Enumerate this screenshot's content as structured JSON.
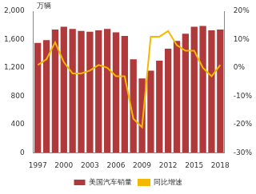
{
  "chart_data": {
    "type": "bar",
    "ylabel": "万辆",
    "categories": [
      "1997",
      null,
      null,
      "2000",
      null,
      null,
      "2003",
      null,
      null,
      "2006",
      null,
      null,
      "2009",
      null,
      null,
      "2012",
      null,
      null,
      "2015",
      null,
      null,
      "2018"
    ],
    "series": [
      {
        "name": "美国汽车销量",
        "type": "bar",
        "color": "#b0393b",
        "values": [
          1550,
          1590,
          1740,
          1780,
          1750,
          1720,
          1710,
          1730,
          1750,
          1700,
          1650,
          1320,
          1050,
          1160,
          1300,
          1470,
          1580,
          1680,
          1780,
          1790,
          1730,
          1740
        ]
      },
      {
        "name": "同比增速",
        "type": "line",
        "color": "#f5b800",
        "axis": "y2",
        "values": [
          1,
          3,
          9,
          2,
          -2,
          -2,
          -1,
          1,
          0,
          -3,
          -3,
          -18,
          -21,
          11,
          11,
          13,
          8,
          6,
          6,
          0,
          -3,
          1
        ]
      }
    ],
    "ylim": [
      0,
      2000
    ],
    "yticks": [
      0,
      400,
      800,
      {
        "value": 1200,
        "label": "1,200"
      },
      {
        "value": 1600,
        "label": "1,600"
      },
      {
        "value": 2000,
        "label": "2,000"
      }
    ],
    "y2lim": [
      -30,
      20
    ],
    "y2ticks": [
      {
        "value": -30,
        "label": "-30%"
      },
      {
        "value": -20,
        "label": "-20%"
      },
      {
        "value": -10,
        "label": "-10%"
      },
      {
        "value": 0,
        "label": "0%"
      },
      {
        "value": 10,
        "label": "10%"
      },
      {
        "value": 20,
        "label": "20%"
      }
    ],
    "grid": false,
    "legend": "bottom"
  }
}
